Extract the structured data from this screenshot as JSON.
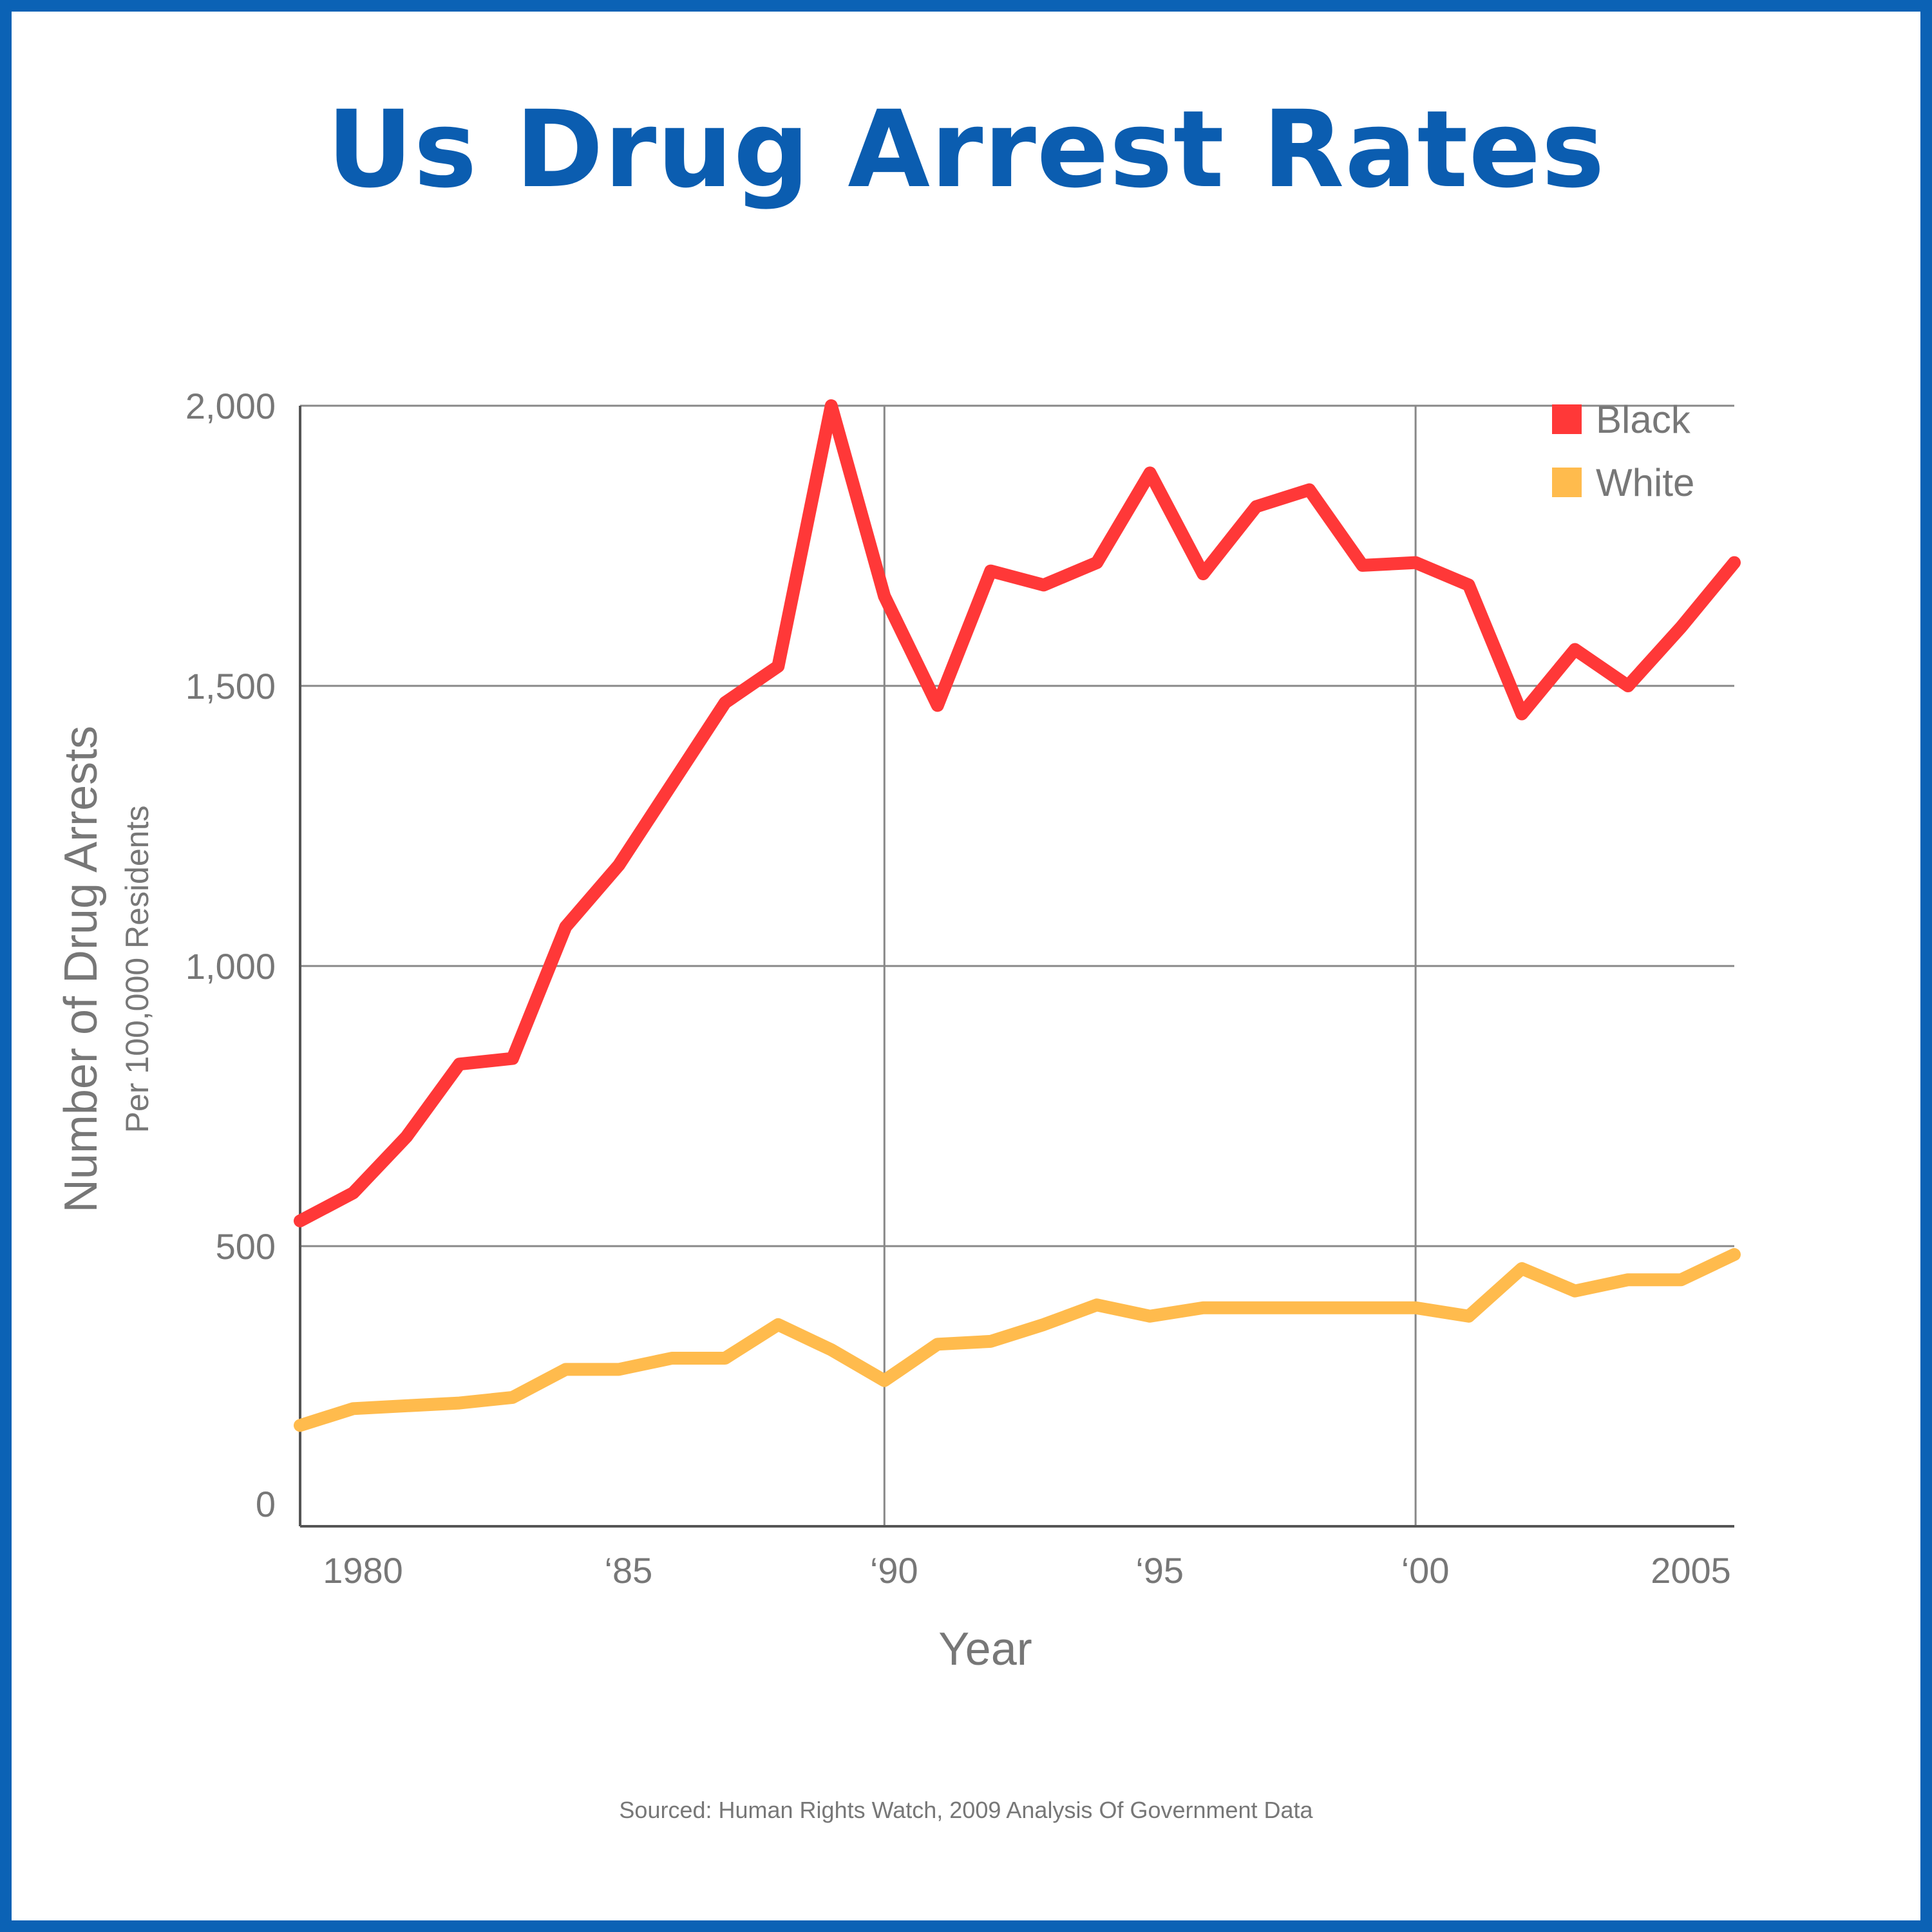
{
  "title": "Us Drug Arrest Rates",
  "source": "Sourced: Human Rights Watch, 2009 Analysis Of Government Data",
  "chart_data": {
    "type": "line",
    "title": "Us Drug Arrest Rates",
    "xlabel": "Year",
    "ylabel": "Number of Drug Arrests",
    "ylabel_sub": "Per 100,000 Residents",
    "xlim": [
      1979,
      2006
    ],
    "ylim": [
      0,
      2000
    ],
    "grid": true,
    "legend_position": "top-right",
    "x_ticks": [
      {
        "value": 1980,
        "label": "1980"
      },
      {
        "value": 1985,
        "label": "‘85"
      },
      {
        "value": 1990,
        "label": "‘90"
      },
      {
        "value": 1995,
        "label": "‘95"
      },
      {
        "value": 2000,
        "label": "‘00"
      },
      {
        "value": 2005,
        "label": "2005"
      }
    ],
    "y_ticks": [
      {
        "value": 0,
        "label": "0"
      },
      {
        "value": 500,
        "label": "500"
      },
      {
        "value": 1000,
        "label": "1,000"
      },
      {
        "value": 1500,
        "label": "1,500"
      },
      {
        "value": 2000,
        "label": "2,000"
      }
    ],
    "x": [
      1979,
      1980,
      1981,
      1982,
      1983,
      1984,
      1985,
      1986,
      1987,
      1988,
      1989,
      1990,
      1991,
      1992,
      1993,
      1994,
      1995,
      1996,
      1997,
      1998,
      1999,
      2000,
      2001,
      2002,
      2003,
      2004,
      2005,
      2006
    ],
    "series": [
      {
        "name": "Black",
        "color": "#ff3838",
        "values": [
          545,
          595,
          695,
          825,
          835,
          1070,
          1180,
          1325,
          1470,
          1535,
          2000,
          1660,
          1465,
          1705,
          1680,
          1720,
          1880,
          1700,
          1820,
          1850,
          1715,
          1720,
          1680,
          1450,
          1565,
          1500,
          1605,
          1720
        ]
      },
      {
        "name": "White",
        "color": "#ffbb4d",
        "values": [
          180,
          210,
          215,
          220,
          230,
          280,
          280,
          300,
          300,
          360,
          315,
          260,
          325,
          330,
          360,
          395,
          375,
          390,
          390,
          390,
          390,
          390,
          375,
          460,
          420,
          440,
          440,
          485
        ]
      }
    ]
  }
}
